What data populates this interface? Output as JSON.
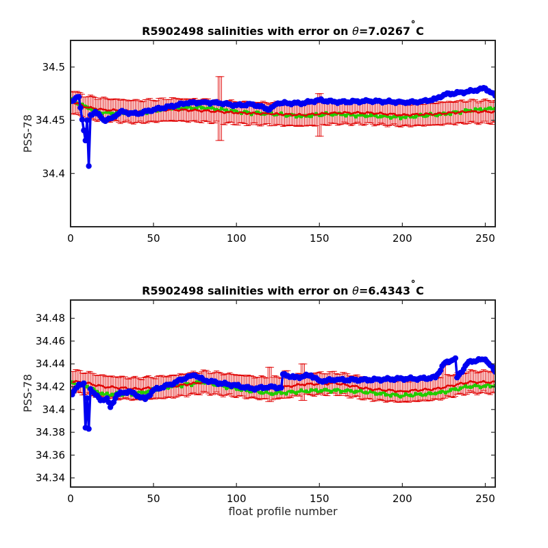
{
  "colors": {
    "mapped": "#e00000",
    "calibrated": "#22cc00",
    "raw": "#0000f0",
    "axis": "#262626"
  },
  "figure": {
    "xlabel": "float profile number"
  },
  "chart_data": [
    {
      "type": "line",
      "title": "R5902498 salinities with error on θ=7.0267˚C",
      "title_prefix": "R5902498 salinities with error on ",
      "theta_symbol": "θ",
      "title_value": "=7.0267",
      "degree_symbol": "˚",
      "title_unit": "C",
      "ylabel": "PSS-78",
      "xlabel": "",
      "xlim": [
        0,
        256
      ],
      "ylim": [
        34.35,
        34.525
      ],
      "xticks": [
        0,
        50,
        100,
        150,
        200,
        250
      ],
      "yticks": [
        34.4,
        34.45,
        34.5
      ],
      "ytick_labels": [
        "34.4",
        "34.45",
        "34.5"
      ],
      "grid": false,
      "series_knots": {
        "mapped": [
          [
            0,
            34.468
          ],
          [
            10,
            34.462
          ],
          [
            20,
            34.46
          ],
          [
            40,
            34.458
          ],
          [
            60,
            34.46
          ],
          [
            80,
            34.459
          ],
          [
            100,
            34.457
          ],
          [
            120,
            34.456
          ],
          [
            140,
            34.455
          ],
          [
            160,
            34.457
          ],
          [
            180,
            34.457
          ],
          [
            200,
            34.455
          ],
          [
            220,
            34.456
          ],
          [
            240,
            34.458
          ],
          [
            256,
            34.458
          ]
        ],
        "calibrated": [
          [
            0,
            34.469
          ],
          [
            10,
            34.462
          ],
          [
            20,
            34.457
          ],
          [
            40,
            34.457
          ],
          [
            60,
            34.461
          ],
          [
            80,
            34.462
          ],
          [
            100,
            34.458
          ],
          [
            120,
            34.456
          ],
          [
            140,
            34.454
          ],
          [
            160,
            34.456
          ],
          [
            180,
            34.454
          ],
          [
            200,
            34.453
          ],
          [
            220,
            34.455
          ],
          [
            240,
            34.459
          ],
          [
            256,
            34.461
          ]
        ],
        "raw": [
          [
            0,
            34.467
          ],
          [
            5,
            34.472
          ],
          [
            9,
            34.431
          ],
          [
            10,
            34.45
          ],
          [
            11,
            34.407
          ],
          [
            12,
            34.455
          ],
          [
            15,
            34.458
          ],
          [
            20,
            34.45
          ],
          [
            25,
            34.452
          ],
          [
            30,
            34.458
          ],
          [
            40,
            34.456
          ],
          [
            50,
            34.46
          ],
          [
            60,
            34.463
          ],
          [
            70,
            34.466
          ],
          [
            80,
            34.467
          ],
          [
            90,
            34.466
          ],
          [
            100,
            34.464
          ],
          [
            110,
            34.465
          ],
          [
            120,
            34.46
          ],
          [
            125,
            34.466
          ],
          [
            140,
            34.466
          ],
          [
            150,
            34.469
          ],
          [
            160,
            34.467
          ],
          [
            180,
            34.468
          ],
          [
            200,
            34.467
          ],
          [
            210,
            34.467
          ],
          [
            220,
            34.47
          ],
          [
            225,
            34.474
          ],
          [
            230,
            34.475
          ],
          [
            240,
            34.477
          ],
          [
            250,
            34.48
          ],
          [
            256,
            34.473
          ]
        ]
      },
      "error_base": 0.011,
      "error_extra": [
        [
          90,
          34.491,
          34.431
        ],
        [
          150,
          34.475,
          34.435
        ]
      ]
    },
    {
      "type": "line",
      "title": "R5902498 salinities with error on θ=6.4343˚C",
      "title_prefix": "R5902498 salinities with error on ",
      "theta_symbol": "θ",
      "title_value": "=6.4343",
      "degree_symbol": "˚",
      "title_unit": "C",
      "ylabel": "PSS-78",
      "xlabel": "float profile number",
      "xlim": [
        0,
        256
      ],
      "ylim": [
        34.332,
        34.496
      ],
      "xticks": [
        0,
        50,
        100,
        150,
        200,
        250
      ],
      "yticks": [
        34.34,
        34.36,
        34.38,
        34.4,
        34.42,
        34.44,
        34.46,
        34.48
      ],
      "ytick_labels": [
        "34.34",
        "34.36",
        "34.38",
        "34.4",
        "34.42",
        "34.44",
        "34.46",
        "34.48"
      ],
      "grid": false,
      "series_knots": {
        "mapped": [
          [
            0,
            34.425
          ],
          [
            10,
            34.423
          ],
          [
            20,
            34.42
          ],
          [
            40,
            34.418
          ],
          [
            60,
            34.42
          ],
          [
            80,
            34.424
          ],
          [
            100,
            34.421
          ],
          [
            120,
            34.418
          ],
          [
            140,
            34.422
          ],
          [
            160,
            34.423
          ],
          [
            180,
            34.418
          ],
          [
            200,
            34.416
          ],
          [
            220,
            34.418
          ],
          [
            240,
            34.424
          ],
          [
            256,
            34.424
          ]
        ],
        "calibrated": [
          [
            0,
            34.424
          ],
          [
            10,
            34.42
          ],
          [
            20,
            34.413
          ],
          [
            40,
            34.414
          ],
          [
            60,
            34.42
          ],
          [
            80,
            34.424
          ],
          [
            100,
            34.418
          ],
          [
            120,
            34.414
          ],
          [
            140,
            34.416
          ],
          [
            160,
            34.417
          ],
          [
            180,
            34.415
          ],
          [
            200,
            34.412
          ],
          [
            220,
            34.414
          ],
          [
            240,
            34.42
          ],
          [
            256,
            34.421
          ]
        ],
        "raw": [
          [
            0,
            34.411
          ],
          [
            5,
            34.422
          ],
          [
            8,
            34.423
          ],
          [
            9,
            34.384
          ],
          [
            10,
            34.41
          ],
          [
            11,
            34.383
          ],
          [
            12,
            34.418
          ],
          [
            18,
            34.408
          ],
          [
            22,
            34.41
          ],
          [
            24,
            34.402
          ],
          [
            28,
            34.413
          ],
          [
            35,
            34.416
          ],
          [
            45,
            34.409
          ],
          [
            50,
            34.417
          ],
          [
            60,
            34.422
          ],
          [
            70,
            34.428
          ],
          [
            75,
            34.43
          ],
          [
            80,
            34.426
          ],
          [
            90,
            34.423
          ],
          [
            100,
            34.421
          ],
          [
            110,
            34.418
          ],
          [
            120,
            34.42
          ],
          [
            127,
            34.419
          ],
          [
            128,
            34.431
          ],
          [
            135,
            34.428
          ],
          [
            145,
            34.43
          ],
          [
            150,
            34.425
          ],
          [
            160,
            34.426
          ],
          [
            180,
            34.426
          ],
          [
            200,
            34.427
          ],
          [
            210,
            34.427
          ],
          [
            220,
            34.428
          ],
          [
            225,
            34.44
          ],
          [
            232,
            34.445
          ],
          [
            233,
            34.428
          ],
          [
            240,
            34.442
          ],
          [
            250,
            34.444
          ],
          [
            256,
            34.433
          ]
        ]
      },
      "error_base": 0.01,
      "error_extra": [
        [
          120,
          34.437,
          34.407
        ],
        [
          130,
          34.434,
          34.41
        ],
        [
          140,
          34.44,
          34.408
        ],
        [
          225,
          34.439,
          34.41
        ]
      ]
    }
  ]
}
